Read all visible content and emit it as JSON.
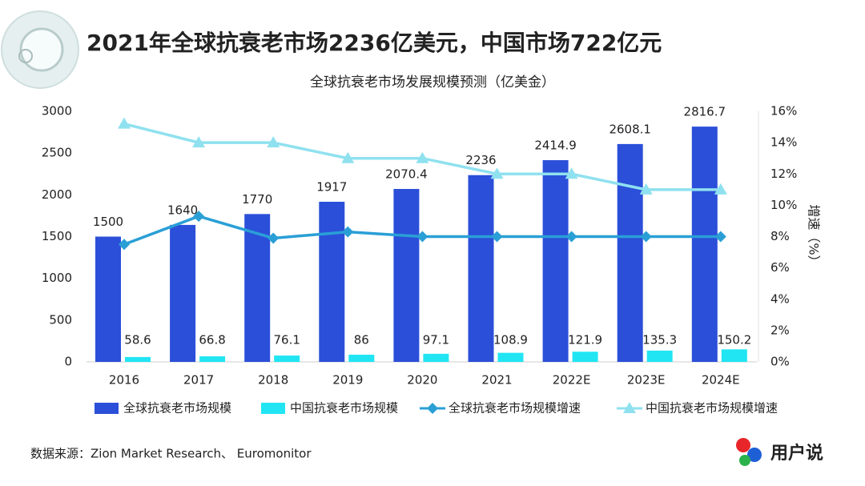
{
  "chart_data": {
    "type": "bar",
    "title": "2021年全球抗衰老市场2236亿美元，中国市场722亿元",
    "subtitle": "全球抗衰老市场发展规模预测（亿美金）",
    "y2_label": "增速（%）",
    "source": "数据来源：Zion Market Research、 Euromonitor",
    "brand": "用户说",
    "categories": [
      "2016",
      "2017",
      "2018",
      "2019",
      "2020",
      "2021",
      "2022E",
      "2023E",
      "2024E"
    ],
    "series": [
      {
        "name": "全球抗衰老市场规模",
        "type": "bar",
        "color": "#2b4fd9",
        "values": [
          1500,
          1640,
          1770,
          1917,
          2070.4,
          2236,
          2414.9,
          2608.1,
          2816.7
        ]
      },
      {
        "name": "中国抗衰老市场规模",
        "type": "bar",
        "color": "#21e5f2",
        "values": [
          58.6,
          66.8,
          76.1,
          86,
          97.1,
          108.9,
          121.9,
          135.3,
          150.2
        ]
      },
      {
        "name": "全球抗衰老市场规模增速",
        "type": "line",
        "axis": "y2",
        "marker": "diamond",
        "color": "#2a9fd6",
        "values": [
          7.5,
          9.3,
          7.9,
          8.3,
          8,
          8,
          8,
          8,
          8
        ]
      },
      {
        "name": "中国抗衰老市场规模增速",
        "type": "line",
        "axis": "y2",
        "marker": "triangle",
        "color": "#8fe1ef",
        "values": [
          15.2,
          14,
          14,
          13,
          13,
          12,
          12,
          11,
          11
        ]
      }
    ],
    "ylim": [
      0,
      3000
    ],
    "yticks": [
      0,
      500,
      1000,
      1500,
      2000,
      2500,
      3000
    ],
    "y2lim": [
      0,
      16
    ],
    "y2ticks": [
      {
        "value": 0,
        "label": "0%"
      },
      {
        "value": 2,
        "label": "2%"
      },
      {
        "value": 4,
        "label": "4%"
      },
      {
        "value": 6,
        "label": "6%"
      },
      {
        "value": 8,
        "label": "8%"
      },
      {
        "value": 10,
        "label": "10%"
      },
      {
        "value": 12,
        "label": "12%"
      },
      {
        "value": 14,
        "label": "14%"
      },
      {
        "value": 16,
        "label": "16%"
      }
    ],
    "legend": "bottom"
  }
}
